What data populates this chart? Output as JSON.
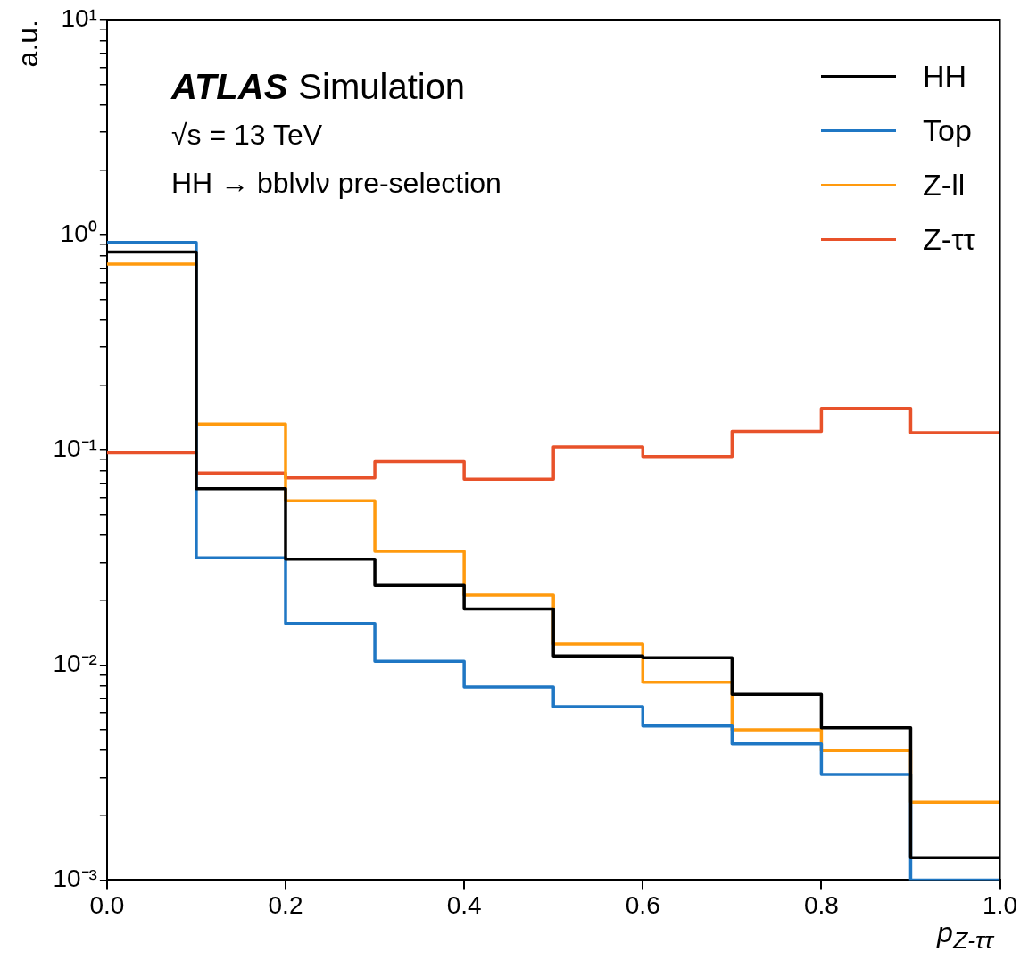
{
  "chart_data": {
    "type": "histogram",
    "xlabel": "p$_{Z-ττ}$",
    "ylabel": "a.u.",
    "log": "y",
    "legend": "top right",
    "grid": false,
    "annotations": [
      "ATLAS Simulation",
      "√s = 13 TeV",
      "HH → bblνlν pre-selection"
    ],
    "bins": [
      0,
      0.1,
      0.2,
      0.3,
      0.4,
      0.5,
      0.6,
      0.7,
      0.8,
      0.9,
      1.0
    ],
    "xlim": [
      0,
      1
    ],
    "xticks": [
      {
        "value": 0,
        "label": "0.0"
      },
      0.2,
      0.4,
      0.6,
      0.8,
      {
        "value": 1,
        "label": "1.0"
      }
    ],
    "ylim": [
      0.001,
      10
    ],
    "yticks": [
      {
        "value": 0.001,
        "label": "10⁻³"
      },
      {
        "value": 0.002,
        "label": null
      },
      {
        "value": 0.003,
        "label": null
      },
      {
        "value": 0.004,
        "label": null
      },
      {
        "value": 0.005,
        "label": null
      },
      {
        "value": 0.006,
        "label": null
      },
      {
        "value": 0.007,
        "label": null
      },
      {
        "value": 0.008,
        "label": null
      },
      {
        "value": 0.009,
        "label": null
      },
      {
        "value": 0.01,
        "label": "10⁻²"
      },
      {
        "value": 0.02,
        "label": null
      },
      {
        "value": 0.03,
        "label": null
      },
      {
        "value": 0.04,
        "label": null
      },
      {
        "value": 0.05,
        "label": null
      },
      {
        "value": 0.06,
        "label": null
      },
      {
        "value": 0.07,
        "label": null
      },
      {
        "value": 0.08,
        "label": null
      },
      {
        "value": 0.09,
        "label": null
      },
      {
        "value": 0.1,
        "label": "10⁻¹"
      },
      {
        "value": 0.2,
        "label": null
      },
      {
        "value": 0.3,
        "label": null
      },
      {
        "value": 0.4,
        "label": null
      },
      {
        "value": 0.5,
        "label": null
      },
      {
        "value": 0.6,
        "label": null
      },
      {
        "value": 0.7,
        "label": null
      },
      {
        "value": 0.8,
        "label": null
      },
      {
        "value": 0.9,
        "label": null
      },
      {
        "value": 1,
        "label": "10⁰"
      },
      {
        "value": 2,
        "label": null
      },
      {
        "value": 3,
        "label": null
      },
      {
        "value": 4,
        "label": null
      },
      {
        "value": 5,
        "label": null
      },
      {
        "value": 6,
        "label": null
      },
      {
        "value": 7,
        "label": null
      },
      {
        "value": 8,
        "label": null
      },
      {
        "value": 9,
        "label": null
      },
      {
        "value": 10,
        "label": "10¹"
      }
    ],
    "series": [
      {
        "name": "HH",
        "color": "#000000",
        "values": [
          0.83,
          0.066,
          0.031,
          0.0234,
          0.0182,
          0.011,
          0.0108,
          0.0073,
          0.0051,
          0.00127
        ]
      },
      {
        "name": "Top",
        "color": "#1f77c4",
        "values": [
          0.92,
          0.0315,
          0.0156,
          0.0104,
          0.0079,
          0.0064,
          0.0052,
          0.0043,
          0.0031,
          0.001
        ]
      },
      {
        "name": "Z-ll",
        "color": "#ff9a0e",
        "values": [
          0.73,
          0.132,
          0.058,
          0.0337,
          0.0211,
          0.0125,
          0.0083,
          0.005,
          0.004,
          0.0023
        ]
      },
      {
        "name": "Z-ττ",
        "color": "#e8522a",
        "values": [
          0.097,
          0.078,
          0.074,
          0.088,
          0.073,
          0.103,
          0.093,
          0.122,
          0.156,
          0.12
        ]
      }
    ]
  }
}
